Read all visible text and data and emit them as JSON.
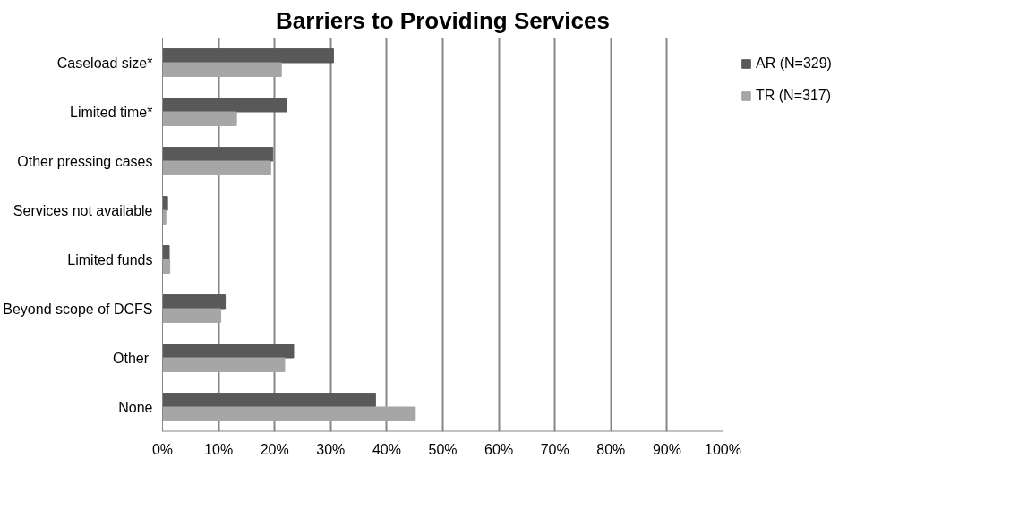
{
  "chart_data": {
    "type": "bar",
    "orientation": "horizontal",
    "title": "Barriers to Providing Services",
    "categories": [
      "Caseload size*",
      "Limited time*",
      "Other pressing cases",
      "Services not available",
      "Limited funds",
      "Beyond scope of DCFS",
      "Other ",
      "None"
    ],
    "series": [
      {
        "name": "AR (N=329)",
        "color": "#595959",
        "values": [
          30.5,
          22.2,
          19.7,
          0.9,
          1.2,
          11.2,
          23.4,
          38.0
        ]
      },
      {
        "name": "TR (N=317)",
        "color": "#a6a6a6",
        "values": [
          21.2,
          13.2,
          19.3,
          0.6,
          1.3,
          10.4,
          21.8,
          45.1
        ]
      }
    ],
    "xlim": [
      0,
      100
    ],
    "xticks": [
      {
        "value": 0,
        "label": "0%"
      },
      {
        "value": 10,
        "label": "10%"
      },
      {
        "value": 20,
        "label": "20%"
      },
      {
        "value": 30,
        "label": "30%"
      },
      {
        "value": 40,
        "label": "40%"
      },
      {
        "value": 50,
        "label": "50%"
      },
      {
        "value": 60,
        "label": "60%"
      },
      {
        "value": 70,
        "label": "70%"
      },
      {
        "value": 80,
        "label": "80%"
      },
      {
        "value": 90,
        "label": "90%"
      },
      {
        "value": 100,
        "label": "100%"
      }
    ],
    "grid": "x",
    "legend": "right"
  }
}
